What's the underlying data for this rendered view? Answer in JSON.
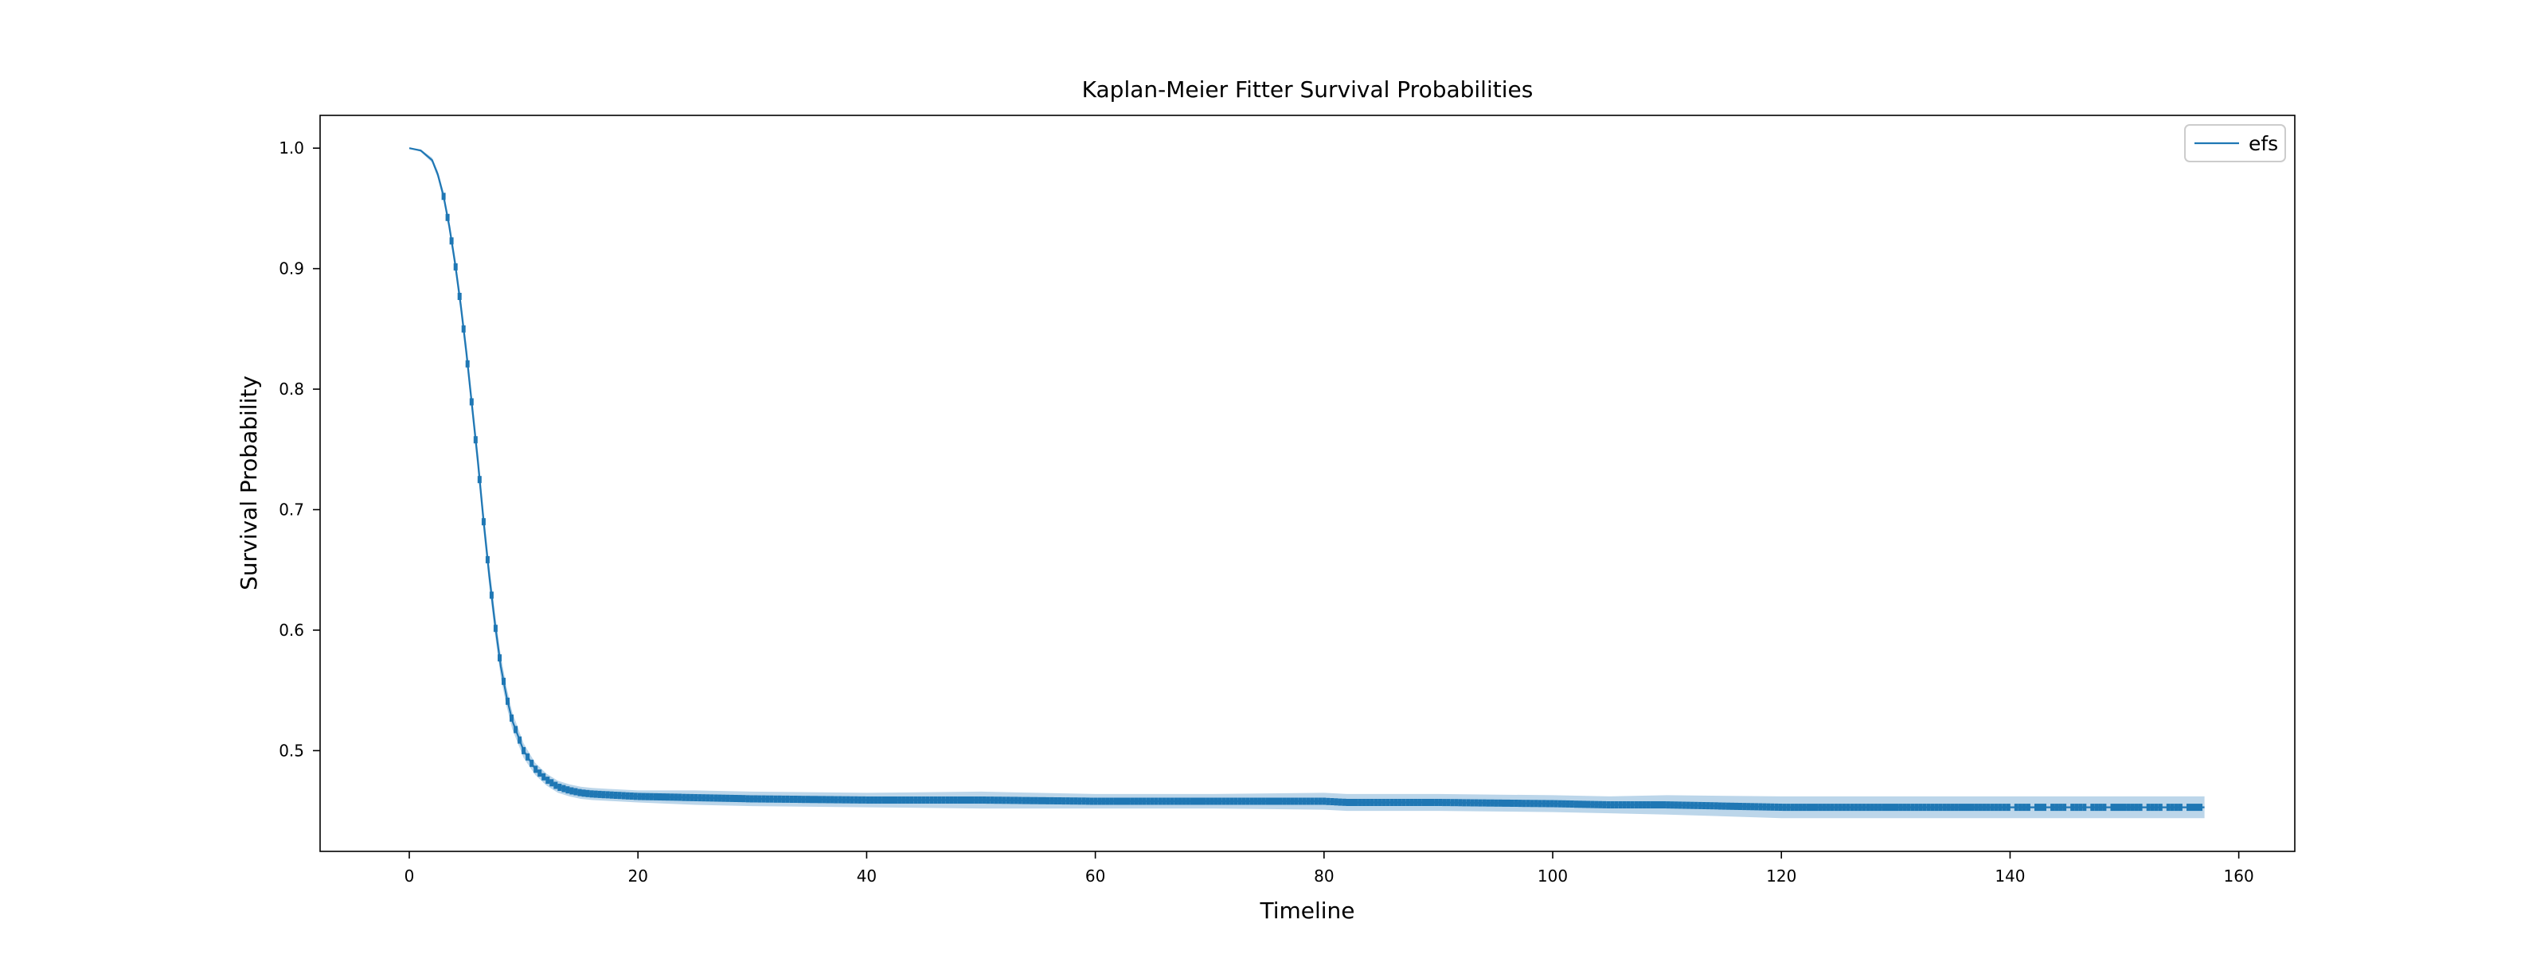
{
  "chart_data": {
    "type": "line",
    "title": "Kaplan-Meier Fitter Survival Probabilities",
    "xlabel": "Timeline",
    "ylabel": "Survival Probability",
    "xlim": [
      -7.8,
      164.9
    ],
    "ylim": [
      0.4164,
      1.0272
    ],
    "xticks": [
      0,
      20,
      40,
      60,
      80,
      100,
      120,
      140,
      160
    ],
    "yticks": [
      0.5,
      0.6,
      0.7,
      0.8,
      0.9,
      1.0
    ],
    "xtick_labels": [
      "0",
      "20",
      "40",
      "60",
      "80",
      "100",
      "120",
      "140",
      "160"
    ],
    "ytick_labels": [
      "0.5",
      "0.6",
      "0.7",
      "0.8",
      "0.9",
      "1.0"
    ],
    "grid": false,
    "legend_position": "top-right",
    "series": [
      {
        "name": "efs",
        "color": "#1f77b4",
        "ci_color": "#b0cfe6",
        "x": [
          0,
          1,
          2,
          2.5,
          3,
          3.5,
          4,
          4.5,
          5,
          5.5,
          6,
          6.5,
          7,
          7.5,
          8,
          8.5,
          9,
          10,
          11,
          12,
          13,
          14,
          15,
          16,
          18,
          20,
          25,
          30,
          40,
          50,
          60,
          70,
          80,
          82,
          90,
          100,
          105,
          110,
          120,
          130,
          140,
          150,
          157
        ],
        "y": [
          1.0,
          0.998,
          0.99,
          0.978,
          0.96,
          0.935,
          0.905,
          0.87,
          0.83,
          0.785,
          0.74,
          0.69,
          0.645,
          0.605,
          0.57,
          0.545,
          0.525,
          0.5,
          0.485,
          0.476,
          0.47,
          0.467,
          0.465,
          0.464,
          0.463,
          0.462,
          0.461,
          0.46,
          0.459,
          0.459,
          0.458,
          0.458,
          0.458,
          0.457,
          0.457,
          0.456,
          0.455,
          0.455,
          0.453,
          0.453,
          0.453,
          0.453,
          0.453
        ],
        "ci_lower": [
          1.0,
          0.997,
          0.988,
          0.975,
          0.956,
          0.93,
          0.899,
          0.863,
          0.822,
          0.777,
          0.731,
          0.681,
          0.636,
          0.596,
          0.561,
          0.537,
          0.518,
          0.494,
          0.48,
          0.471,
          0.465,
          0.462,
          0.46,
          0.459,
          0.458,
          0.457,
          0.455,
          0.454,
          0.453,
          0.452,
          0.452,
          0.452,
          0.451,
          0.45,
          0.45,
          0.449,
          0.448,
          0.447,
          0.444,
          0.444,
          0.444,
          0.444,
          0.444
        ],
        "ci_upper": [
          1.0,
          0.999,
          0.992,
          0.981,
          0.964,
          0.94,
          0.911,
          0.877,
          0.838,
          0.793,
          0.749,
          0.699,
          0.654,
          0.614,
          0.579,
          0.553,
          0.532,
          0.506,
          0.49,
          0.481,
          0.475,
          0.472,
          0.47,
          0.469,
          0.468,
          0.467,
          0.467,
          0.466,
          0.465,
          0.466,
          0.464,
          0.464,
          0.465,
          0.464,
          0.464,
          0.463,
          0.462,
          0.463,
          0.462,
          0.462,
          0.462,
          0.462,
          0.462
        ],
        "censor_range": [
          3,
          157
        ]
      }
    ]
  }
}
